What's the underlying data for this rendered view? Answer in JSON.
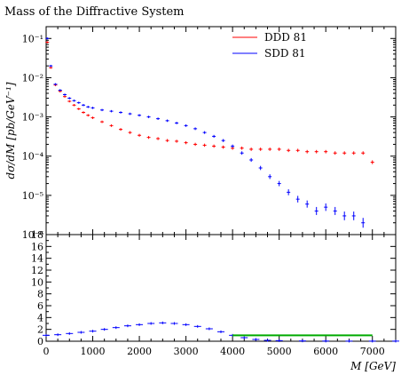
{
  "chart_data": [
    {
      "type": "scatter",
      "title": "Mass of the Diffractive System",
      "ylabel": "dσ/dM [pb/GeV⁻¹]",
      "y_scale": "log",
      "xlim": [
        0,
        7500
      ],
      "ylim": [
        1e-06,
        0.2
      ],
      "y_tick_labels": [
        "10⁻¹",
        "10⁻²",
        "10⁻³",
        "10⁻⁴",
        "10⁻⁵",
        "10⁻⁶"
      ],
      "legend_position": "top-right",
      "series": [
        {
          "name": "DDD 81",
          "color": "#ff0000",
          "x": [
            25,
            100,
            200,
            300,
            400,
            500,
            600,
            700,
            800,
            900,
            1000,
            1200,
            1400,
            1600,
            1800,
            2000,
            2200,
            2400,
            2600,
            2800,
            3000,
            3200,
            3400,
            3600,
            3800,
            4000,
            4200,
            4400,
            4600,
            4800,
            5000,
            5200,
            5400,
            5600,
            5800,
            6000,
            6200,
            6400,
            6600,
            6800,
            7000
          ],
          "y": [
            0.08,
            0.018,
            0.0065,
            0.0045,
            0.0033,
            0.0025,
            0.002,
            0.0016,
            0.0013,
            0.0011,
            0.00095,
            0.00075,
            0.0006,
            0.00048,
            0.0004,
            0.00034,
            0.0003,
            0.00028,
            0.00025,
            0.00024,
            0.00022,
            0.0002,
            0.00019,
            0.00018,
            0.00017,
            0.00016,
            0.00016,
            0.00015,
            0.00015,
            0.00015,
            0.00015,
            0.00014,
            0.00014,
            0.00013,
            0.00013,
            0.00013,
            0.00012,
            0.00012,
            0.00012,
            0.00012,
            7e-05
          ]
        },
        {
          "name": "SDD 81",
          "color": "#0000ff",
          "x": [
            25,
            100,
            200,
            300,
            400,
            500,
            600,
            700,
            800,
            900,
            1000,
            1200,
            1400,
            1600,
            1800,
            2000,
            2200,
            2400,
            2600,
            2800,
            3000,
            3200,
            3400,
            3600,
            3800,
            4000,
            4200,
            4400,
            4600,
            4800,
            5000,
            5200,
            5400,
            5600,
            5800,
            6000,
            6200,
            6400,
            6600,
            6800
          ],
          "y": [
            0.1,
            0.02,
            0.0068,
            0.0048,
            0.0037,
            0.003,
            0.0026,
            0.0023,
            0.002,
            0.0018,
            0.0017,
            0.0015,
            0.0014,
            0.0013,
            0.0012,
            0.0011,
            0.001,
            0.0009,
            0.0008,
            0.0007,
            0.0006,
            0.0005,
            0.0004,
            0.00032,
            0.00025,
            0.00018,
            0.00012,
            8e-05,
            5e-05,
            3e-05,
            2e-05,
            1.2e-05,
            8e-06,
            6e-06,
            4e-06,
            5e-06,
            4e-06,
            3e-06,
            3e-06,
            2e-06
          ]
        }
      ]
    },
    {
      "type": "scatter",
      "xlabel": "M [GeV]",
      "xlim": [
        0,
        7500
      ],
      "ylim": [
        0,
        18
      ],
      "x_ticks": [
        0,
        1000,
        2000,
        3000,
        4000,
        5000,
        6000,
        7000
      ],
      "y_ticks": [
        0,
        2,
        4,
        6,
        8,
        10,
        12,
        14,
        16,
        18
      ],
      "series": [
        {
          "color": "#0000ff",
          "x": [
            0,
            250,
            500,
            750,
            1000,
            1250,
            1500,
            1750,
            2000,
            2250,
            2500,
            2750,
            3000,
            3250,
            3500,
            3750,
            4000,
            4250,
            4500,
            4750,
            5000,
            5500,
            6000,
            6500,
            7000,
            7500
          ],
          "y": [
            1.0,
            1.1,
            1.3,
            1.5,
            1.7,
            2.0,
            2.3,
            2.6,
            2.8,
            3.0,
            3.1,
            3.0,
            2.8,
            2.5,
            2.1,
            1.6,
            1.0,
            0.6,
            0.3,
            0.15,
            0.1,
            0.05,
            0.03,
            0.02,
            0.02,
            0.02
          ]
        },
        {
          "color": "#00aa00",
          "x": [
            4000,
            7000
          ],
          "y": [
            1.0,
            1.0
          ]
        }
      ]
    }
  ]
}
